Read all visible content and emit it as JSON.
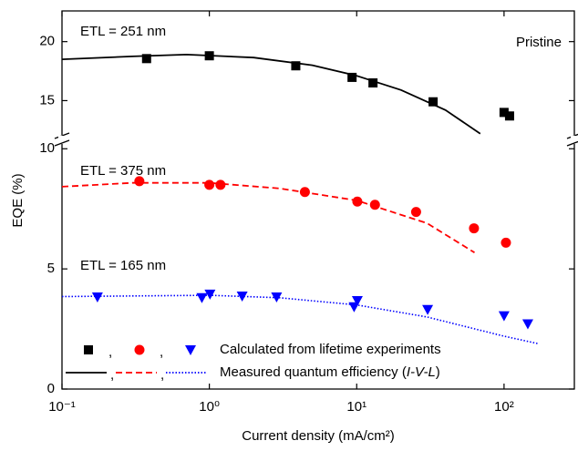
{
  "chart_data": [
    {
      "type": "line",
      "xscale": "log",
      "xlim": [
        0.1,
        300
      ],
      "ylim": [
        12.1,
        22.6
      ],
      "yticks": [
        15,
        20
      ],
      "annotations": [
        {
          "text": "ETL = 251 nm",
          "color": "#000000",
          "corner": "top-left"
        },
        {
          "text": "Pristine",
          "color": "#000000",
          "corner": "top-right"
        }
      ],
      "series": [
        {
          "color": "#000000",
          "line": "solid",
          "x": [
            0.1,
            0.3,
            0.7,
            2,
            5,
            10,
            20,
            40,
            69
          ],
          "values": [
            18.5,
            18.75,
            18.9,
            18.65,
            18.0,
            17.1,
            15.9,
            14.2,
            12.2
          ]
        },
        {
          "color": "#000000",
          "marker": "square",
          "x": [
            0.375,
            1.0,
            3.86,
            9.3,
            12.9,
            33,
            100,
            109
          ],
          "values": [
            18.56,
            18.8,
            17.95,
            16.97,
            16.5,
            14.9,
            14.0,
            13.7
          ]
        }
      ]
    },
    {
      "type": "line",
      "xscale": "log",
      "xlim": [
        0.1,
        300
      ],
      "ylim": [
        0,
        10.2
      ],
      "yticks": [
        0,
        5,
        10
      ],
      "xticks": [
        {
          "value": 0.1,
          "label": "10⁻¹"
        },
        {
          "value": 1,
          "label": "10⁰"
        },
        {
          "value": 10,
          "label": "10¹"
        },
        {
          "value": 100,
          "label": "10²"
        }
      ],
      "xlabel": "Current density (mA/cm²)",
      "ylabel": "EQE (%)",
      "annotations": [
        {
          "text": "ETL = 375 nm",
          "color": "#ff0000",
          "corner": "upper-left"
        },
        {
          "text": "ETL = 165 nm",
          "color": "#0000ff",
          "corner": "middle-left"
        }
      ],
      "series": [
        {
          "color": "#ff0000",
          "line": "dashed",
          "x": [
            0.1,
            0.3,
            1,
            3,
            10,
            30,
            63
          ],
          "values": [
            8.42,
            8.58,
            8.58,
            8.35,
            7.85,
            6.9,
            5.68
          ]
        },
        {
          "color": "#ff0000",
          "marker": "circle",
          "x": [
            0.335,
            1.0,
            1.19,
            4.45,
            10.1,
            13.3,
            25.3,
            62.5,
            103
          ],
          "values": [
            8.65,
            8.5,
            8.5,
            8.2,
            7.8,
            7.67,
            7.37,
            6.69,
            6.09
          ]
        },
        {
          "color": "#0000ff",
          "line": "dotted",
          "x": [
            0.1,
            1,
            3,
            10,
            30,
            100,
            173
          ],
          "values": [
            3.85,
            3.9,
            3.8,
            3.5,
            3.0,
            2.2,
            1.88
          ]
        },
        {
          "color": "#0000ff",
          "marker": "triangle-down",
          "x": [
            0.174,
            0.89,
            1.01,
            1.67,
            2.86,
            9.6,
            10.1,
            30.3,
            100,
            145
          ],
          "values": [
            3.83,
            3.8,
            3.95,
            3.87,
            3.83,
            3.42,
            3.68,
            3.31,
            3.05,
            2.71
          ]
        }
      ],
      "legend": {
        "separator": ",",
        "markers_label": "Calculated from lifetime experiments",
        "lines_label": [
          "Measured quantum efficiency (",
          "I-V-L",
          ")"
        ],
        "corner": "bottom-left"
      }
    }
  ]
}
